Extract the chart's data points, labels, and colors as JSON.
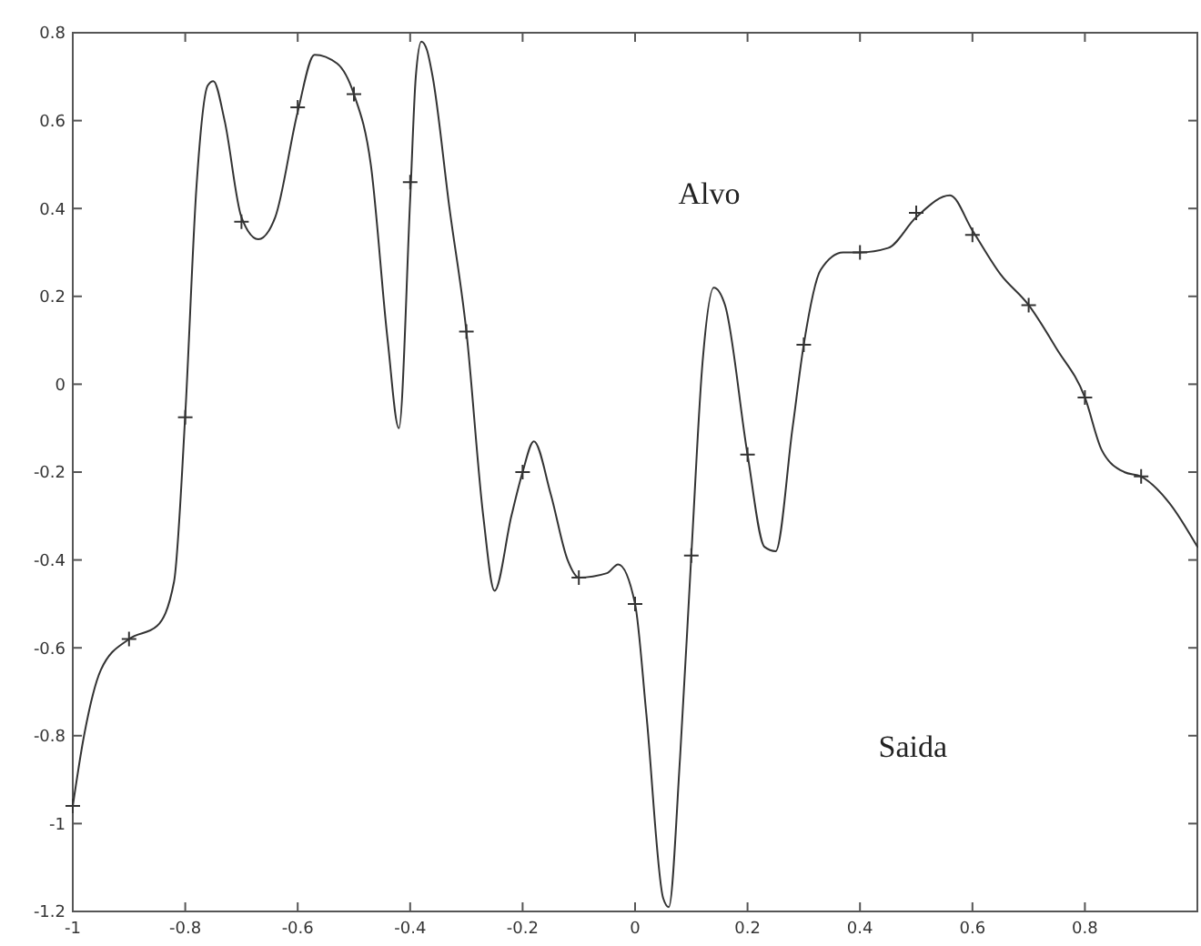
{
  "chart_data": {
    "type": "line",
    "xlim": [
      -1,
      1
    ],
    "ylim": [
      -1.2,
      0.8
    ],
    "xticks": [
      -1,
      -0.8,
      -0.6,
      -0.4,
      -0.2,
      0,
      0.2,
      0.4,
      0.6,
      0.8
    ],
    "yticks": [
      -1.2,
      -1,
      -0.8,
      -0.6,
      -0.4,
      -0.2,
      0,
      0.2,
      0.4,
      0.6,
      0.8
    ],
    "grid": false,
    "annotations": [
      "Alvo",
      "Saida"
    ],
    "series": [
      {
        "color": "#333333",
        "marker": "none",
        "line_style": "solid",
        "x": [
          -1,
          -0.98,
          -0.95,
          -0.9,
          -0.85,
          -0.82,
          -0.8,
          -0.78,
          -0.76,
          -0.75,
          -0.73,
          -0.7,
          -0.67,
          -0.64,
          -0.6,
          -0.57,
          -0.53,
          -0.5,
          -0.47,
          -0.44,
          -0.42,
          -0.4,
          -0.39,
          -0.38,
          -0.37,
          -0.36,
          -0.33,
          -0.3,
          -0.27,
          -0.25,
          -0.22,
          -0.2,
          -0.18,
          -0.15,
          -0.12,
          -0.1,
          -0.05,
          -0.03,
          0,
          0.02,
          0.05,
          0.06,
          0.08,
          0.1,
          0.12,
          0.14,
          0.16,
          0.2,
          0.23,
          0.25,
          0.28,
          0.3,
          0.33,
          0.37,
          0.4,
          0.45,
          0.5,
          0.56,
          0.6,
          0.65,
          0.7,
          0.75,
          0.8,
          0.83,
          0.87,
          0.9,
          0.95,
          1
        ],
        "values": [
          -0.96,
          -0.8,
          -0.65,
          -0.58,
          -0.55,
          -0.45,
          -0.07,
          0.45,
          0.68,
          0.69,
          0.6,
          0.38,
          0.33,
          0.38,
          0.62,
          0.75,
          0.73,
          0.66,
          0.5,
          0.1,
          -0.1,
          0.42,
          0.7,
          0.78,
          0.76,
          0.7,
          0.4,
          0.12,
          -0.3,
          -0.47,
          -0.3,
          -0.2,
          -0.13,
          -0.25,
          -0.4,
          -0.44,
          -0.43,
          -0.41,
          -0.5,
          -0.75,
          -1.17,
          -1.19,
          -0.85,
          -0.39,
          0.05,
          0.22,
          0.18,
          -0.16,
          -0.37,
          -0.38,
          -0.1,
          0.09,
          0.26,
          0.3,
          0.3,
          0.31,
          0.38,
          0.43,
          0.35,
          0.25,
          0.18,
          0.08,
          -0.03,
          -0.15,
          -0.2,
          -0.21,
          -0.27,
          -0.37
        ]
      },
      {
        "type": "scatter",
        "color": "#333333",
        "marker": "cross",
        "x": [
          -1,
          -0.9,
          -0.8,
          -0.7,
          -0.6,
          -0.5,
          -0.4,
          -0.3,
          -0.2,
          -0.1,
          0,
          0.1,
          0.2,
          0.3,
          0.4,
          0.5,
          0.6,
          0.7,
          0.8,
          0.9
        ],
        "values": [
          -0.96,
          -0.58,
          -0.075,
          0.37,
          0.63,
          0.66,
          0.46,
          0.12,
          -0.2,
          -0.44,
          -0.5,
          -0.39,
          -0.16,
          0.09,
          0.3,
          0.39,
          0.34,
          0.18,
          -0.03,
          -0.21
        ]
      }
    ]
  }
}
